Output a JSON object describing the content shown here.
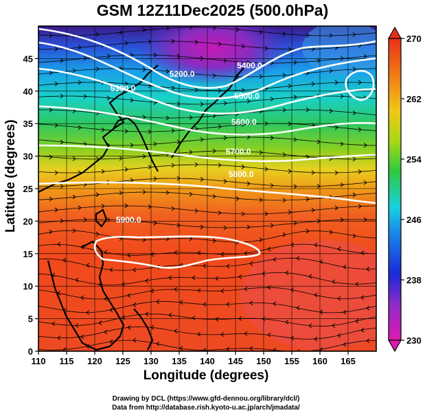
{
  "title": "GSM 12Z11Dec2025 (500.0hPa)",
  "xlabel": "Longitude (degrees)",
  "ylabel": "Latitude  (degrees)",
  "credit_line1": "Drawing by DCL (https://www.gfd-dennou.org/library/dcl/)",
  "credit_line2": "Data from http://database.rish.kyoto-u.ac.jp/arch/jmadata/",
  "map_data": {
    "lon_range": [
      110,
      170
    ],
    "lat_range": [
      0,
      50
    ],
    "lon_ticks": [
      "110",
      "115",
      "120",
      "125",
      "130",
      "135",
      "140",
      "145",
      "150",
      "155",
      "160",
      "165"
    ],
    "lat_ticks": [
      "0",
      "5",
      "10",
      "15",
      "20",
      "25",
      "30",
      "35",
      "40",
      "45"
    ],
    "colorbar_ticks": [
      "230",
      "238",
      "246",
      "254",
      "262",
      "270"
    ],
    "colorbar_range": [
      230,
      270
    ],
    "contour_labels": [
      {
        "text": "5200.0",
        "lon": 135.5,
        "lat": 42.2
      },
      {
        "text": "5300.0",
        "lon": 125.0,
        "lat": 40.0
      },
      {
        "text": "5400.0",
        "lon": 147.5,
        "lat": 43.5
      },
      {
        "text": "5500.0",
        "lon": 147.0,
        "lat": 38.8
      },
      {
        "text": "5600.0",
        "lon": 146.5,
        "lat": 34.8
      },
      {
        "text": "5700.0",
        "lon": 145.5,
        "lat": 30.3
      },
      {
        "text": "5800.0",
        "lon": 146.0,
        "lat": 26.8
      },
      {
        "text": "5900.0",
        "lon": 126.0,
        "lat": 19.8
      }
    ]
  }
}
